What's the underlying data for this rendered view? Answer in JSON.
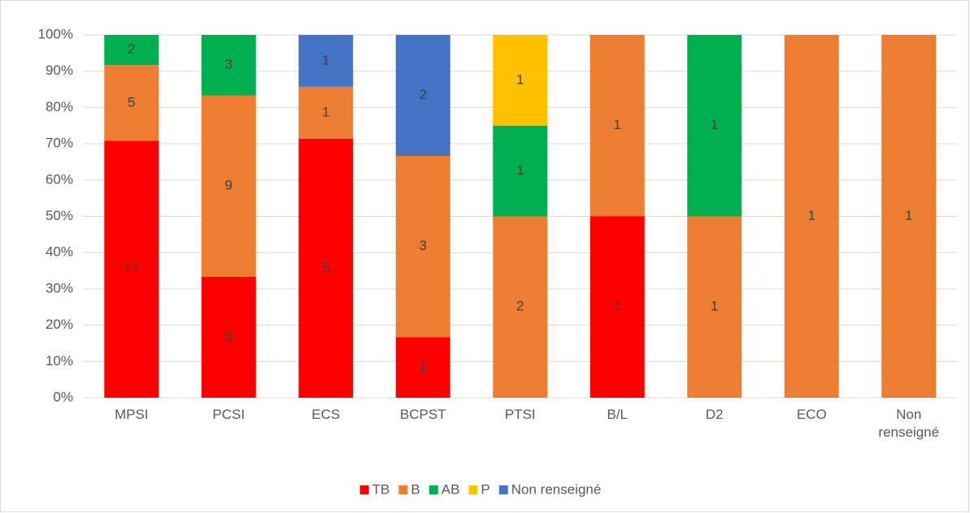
{
  "chart_data": {
    "type": "bar",
    "stacked": "percent",
    "categories": [
      "MPSI",
      "PCSI",
      "ECS",
      "BCPST",
      "PTSI",
      "B/L",
      "D2",
      "ECO",
      "Non renseigné"
    ],
    "series": [
      {
        "name": "TB",
        "color": "#ff0000",
        "values": [
          17,
          6,
          5,
          1,
          null,
          1,
          null,
          null,
          null
        ]
      },
      {
        "name": "B",
        "color": "#ed7d31",
        "values": [
          5,
          9,
          1,
          3,
          2,
          1,
          1,
          1,
          1
        ]
      },
      {
        "name": "AB",
        "color": "#00b050",
        "values": [
          2,
          3,
          null,
          null,
          1,
          null,
          1,
          null,
          null
        ]
      },
      {
        "name": "P",
        "color": "#ffc000",
        "values": [
          null,
          null,
          null,
          null,
          1,
          null,
          null,
          null,
          null
        ]
      },
      {
        "name": "Non renseigné",
        "color": "#4472c4",
        "values": [
          null,
          null,
          1,
          2,
          null,
          null,
          null,
          null,
          null
        ]
      }
    ],
    "ylim": [
      0,
      100
    ],
    "yticks": [
      {
        "value": 0,
        "label": "0%"
      },
      {
        "value": 10,
        "label": "10%"
      },
      {
        "value": 20,
        "label": "20%"
      },
      {
        "value": 30,
        "label": "30%"
      },
      {
        "value": 40,
        "label": "40%"
      },
      {
        "value": 50,
        "label": "50%"
      },
      {
        "value": 60,
        "label": "60%"
      },
      {
        "value": 70,
        "label": "70%"
      },
      {
        "value": 80,
        "label": "80%"
      },
      {
        "value": 90,
        "label": "90%"
      },
      {
        "value": 100,
        "label": "100%"
      }
    ],
    "grid": true,
    "legend": "bottom"
  }
}
